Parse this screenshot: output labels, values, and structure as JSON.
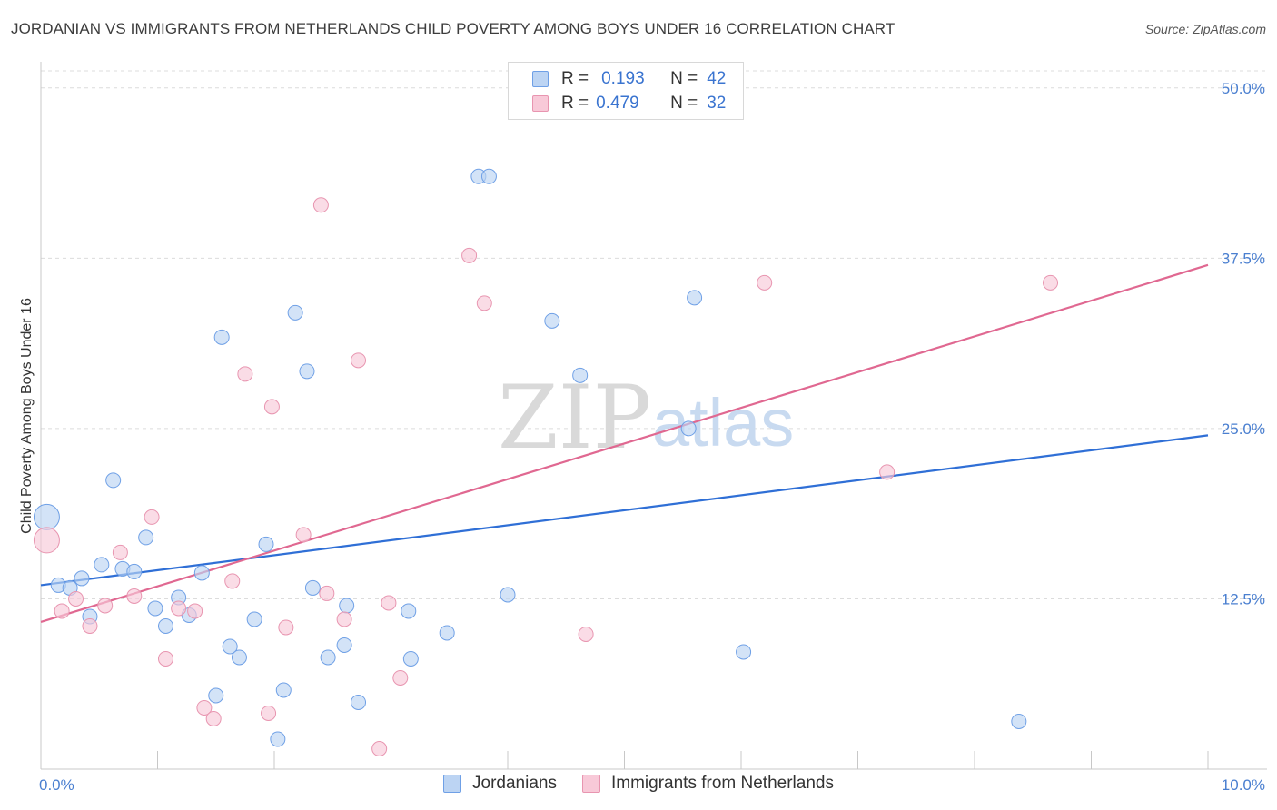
{
  "header": {
    "title": "JORDANIAN VS IMMIGRANTS FROM NETHERLANDS CHILD POVERTY AMONG BOYS UNDER 16 CORRELATION CHART",
    "source": "Source: ZipAtlas.com"
  },
  "legend": {
    "series_a": {
      "r_label": "R =",
      "r_value": "0.193",
      "n_label": "N =",
      "n_value": "42"
    },
    "series_b": {
      "r_label": "R =",
      "r_value": "0.479",
      "n_label": "N =",
      "n_value": "32"
    }
  },
  "watermark": {
    "zip": "ZIP",
    "atlas": "atlas"
  },
  "chart_data": {
    "type": "scatter",
    "title": "JORDANIAN VS IMMIGRANTS FROM NETHERLANDS CHILD POVERTY AMONG BOYS UNDER 16 CORRELATION CHART",
    "xlabel": "",
    "ylabel": "Child Poverty Among Boys Under 16",
    "xlim": [
      0,
      10
    ],
    "ylim": [
      0,
      51.25
    ],
    "x_tick_labels": [
      {
        "value": 0,
        "label": "0.0%"
      },
      {
        "value": 10,
        "label": "10.0%"
      }
    ],
    "y_tick_labels": [
      {
        "value": 12.5,
        "label": "12.5%"
      },
      {
        "value": 25,
        "label": "25.0%"
      },
      {
        "value": 37.5,
        "label": "37.5%"
      },
      {
        "value": 50,
        "label": "50.0%"
      }
    ],
    "grid": true,
    "legend_position": "top-center",
    "series": [
      {
        "name": "Jordanians",
        "color": "#6fa0e6",
        "fill": "#bcd4f3",
        "trend_color": "#2f6fd6",
        "trend": {
          "x": [
            0,
            10
          ],
          "y": [
            13.5,
            24.5
          ]
        },
        "points": [
          {
            "x": 0.05,
            "y": 18.5,
            "size": "large"
          },
          {
            "x": 0.15,
            "y": 13.5
          },
          {
            "x": 0.25,
            "y": 13.3
          },
          {
            "x": 0.35,
            "y": 14.0
          },
          {
            "x": 0.42,
            "y": 11.2
          },
          {
            "x": 0.52,
            "y": 15.0
          },
          {
            "x": 0.62,
            "y": 21.2
          },
          {
            "x": 0.7,
            "y": 14.7
          },
          {
            "x": 0.8,
            "y": 14.5
          },
          {
            "x": 0.9,
            "y": 17.0
          },
          {
            "x": 0.98,
            "y": 11.8
          },
          {
            "x": 1.07,
            "y": 10.5
          },
          {
            "x": 1.18,
            "y": 12.6
          },
          {
            "x": 1.27,
            "y": 11.3
          },
          {
            "x": 1.38,
            "y": 14.4
          },
          {
            "x": 1.5,
            "y": 5.4
          },
          {
            "x": 1.62,
            "y": 9.0
          },
          {
            "x": 1.7,
            "y": 8.2
          },
          {
            "x": 1.55,
            "y": 31.7
          },
          {
            "x": 1.83,
            "y": 11.0
          },
          {
            "x": 1.93,
            "y": 16.5
          },
          {
            "x": 2.03,
            "y": 2.2
          },
          {
            "x": 2.08,
            "y": 5.8
          },
          {
            "x": 2.18,
            "y": 33.5
          },
          {
            "x": 2.28,
            "y": 29.2
          },
          {
            "x": 2.33,
            "y": 13.3
          },
          {
            "x": 2.46,
            "y": 8.2
          },
          {
            "x": 2.6,
            "y": 9.1
          },
          {
            "x": 2.62,
            "y": 12.0
          },
          {
            "x": 2.72,
            "y": 4.9
          },
          {
            "x": 3.15,
            "y": 11.6
          },
          {
            "x": 3.17,
            "y": 8.1
          },
          {
            "x": 3.48,
            "y": 10.0
          },
          {
            "x": 3.75,
            "y": 43.5
          },
          {
            "x": 3.84,
            "y": 43.5
          },
          {
            "x": 4.0,
            "y": 12.8
          },
          {
            "x": 4.38,
            "y": 32.9
          },
          {
            "x": 4.62,
            "y": 28.9
          },
          {
            "x": 5.55,
            "y": 25.0
          },
          {
            "x": 5.6,
            "y": 34.6
          },
          {
            "x": 6.02,
            "y": 8.6
          },
          {
            "x": 8.38,
            "y": 3.5
          }
        ]
      },
      {
        "name": "Immigrants from Netherlands",
        "color": "#e895b0",
        "fill": "#f8c9d8",
        "trend_color": "#e06891",
        "trend": {
          "x": [
            0,
            10
          ],
          "y": [
            10.8,
            37.0
          ]
        },
        "points": [
          {
            "x": 0.05,
            "y": 16.8,
            "size": "large"
          },
          {
            "x": 0.18,
            "y": 11.6
          },
          {
            "x": 0.3,
            "y": 12.5
          },
          {
            "x": 0.42,
            "y": 10.5
          },
          {
            "x": 0.55,
            "y": 12.0
          },
          {
            "x": 0.68,
            "y": 15.9
          },
          {
            "x": 0.8,
            "y": 12.7
          },
          {
            "x": 0.95,
            "y": 18.5
          },
          {
            "x": 1.07,
            "y": 8.1
          },
          {
            "x": 1.18,
            "y": 11.8
          },
          {
            "x": 1.32,
            "y": 11.6
          },
          {
            "x": 1.4,
            "y": 4.5
          },
          {
            "x": 1.48,
            "y": 3.7
          },
          {
            "x": 1.64,
            "y": 13.8
          },
          {
            "x": 1.75,
            "y": 29.0
          },
          {
            "x": 1.95,
            "y": 4.1
          },
          {
            "x": 1.98,
            "y": 26.6
          },
          {
            "x": 2.1,
            "y": 10.4
          },
          {
            "x": 2.25,
            "y": 17.2
          },
          {
            "x": 2.4,
            "y": 41.4
          },
          {
            "x": 2.45,
            "y": 12.9
          },
          {
            "x": 2.6,
            "y": 11.0
          },
          {
            "x": 2.72,
            "y": 30.0
          },
          {
            "x": 2.9,
            "y": 1.5
          },
          {
            "x": 2.98,
            "y": 12.2
          },
          {
            "x": 3.08,
            "y": 6.7
          },
          {
            "x": 3.67,
            "y": 37.7
          },
          {
            "x": 3.8,
            "y": 34.2
          },
          {
            "x": 4.67,
            "y": 9.9
          },
          {
            "x": 6.2,
            "y": 35.7
          },
          {
            "x": 7.25,
            "y": 21.8
          },
          {
            "x": 8.65,
            "y": 35.7
          }
        ]
      }
    ]
  }
}
